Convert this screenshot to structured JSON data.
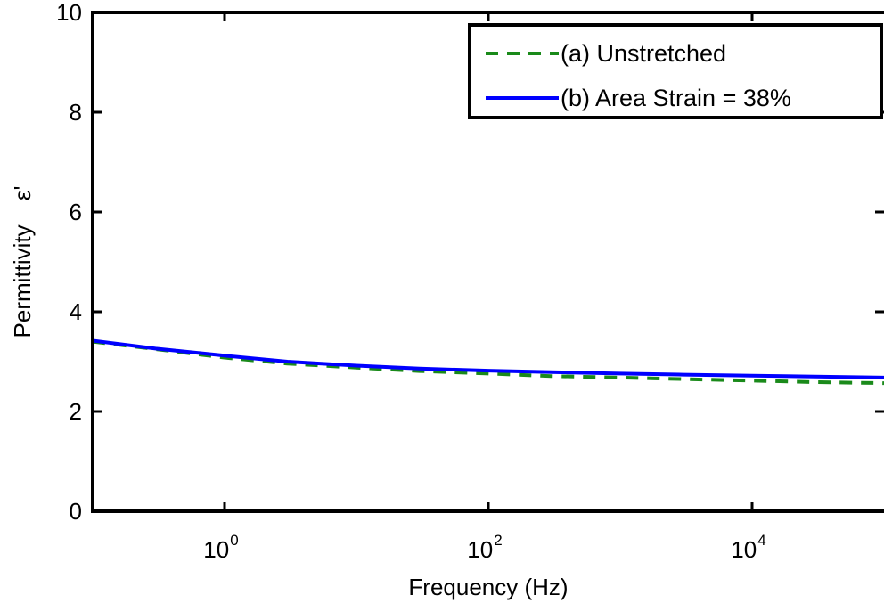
{
  "chart_data": {
    "type": "line",
    "title": "",
    "xlabel": "Frequency (Hz)",
    "ylabel": "Permittivity",
    "ylabel_symbol": "ε'",
    "xscale": "log",
    "xlim": [
      0.1,
      100000
    ],
    "ylim": [
      0,
      10
    ],
    "x_ticks": [
      {
        "value": 1,
        "base": "10",
        "exp": "0"
      },
      {
        "value": 100,
        "base": "10",
        "exp": "2"
      },
      {
        "value": 10000,
        "base": "10",
        "exp": "4"
      }
    ],
    "y_ticks": [
      "0",
      "2",
      "4",
      "6",
      "8",
      "10"
    ],
    "grid": false,
    "legend_position": "top-right",
    "series": [
      {
        "name": "(a) Unstretched",
        "style": "dashed",
        "color": "#1a8a1a",
        "x": [
          0.1,
          0.3,
          1,
          3,
          10,
          30,
          100,
          300,
          1000,
          3000,
          10000,
          30000,
          100000
        ],
        "y": [
          3.4,
          3.25,
          3.08,
          2.96,
          2.88,
          2.81,
          2.76,
          2.71,
          2.68,
          2.65,
          2.62,
          2.59,
          2.57
        ]
      },
      {
        "name": "(b) Area Strain = 38%",
        "style": "solid",
        "color": "#0000ff",
        "x": [
          0.1,
          0.3,
          1,
          3,
          10,
          30,
          100,
          300,
          1000,
          3000,
          10000,
          30000,
          100000
        ],
        "y": [
          3.42,
          3.26,
          3.12,
          3.0,
          2.92,
          2.86,
          2.82,
          2.79,
          2.76,
          2.74,
          2.72,
          2.7,
          2.68
        ]
      }
    ]
  }
}
